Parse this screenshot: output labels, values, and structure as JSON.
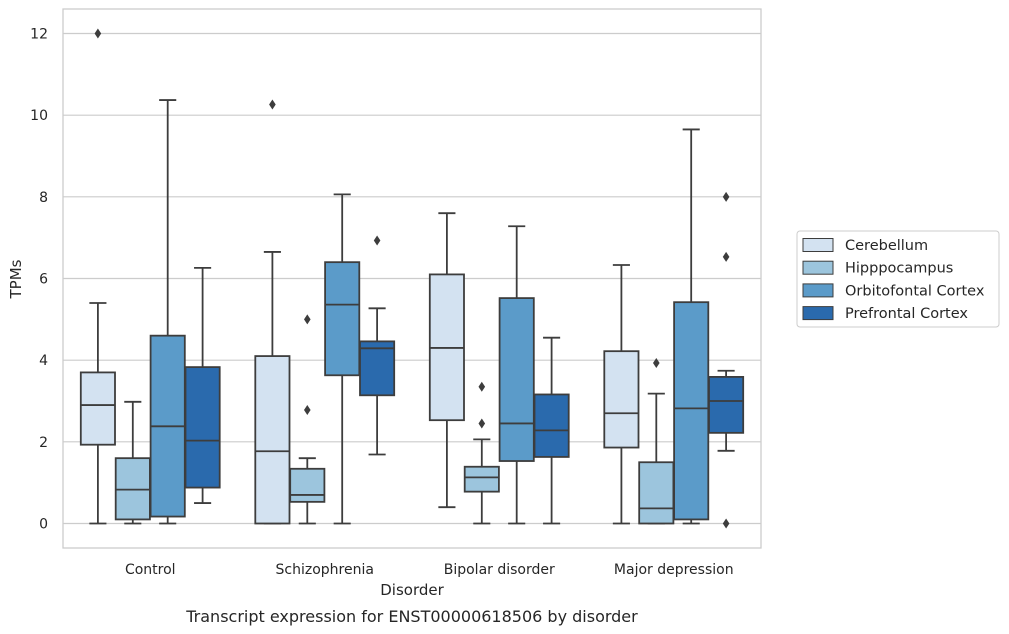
{
  "chart_data": {
    "type": "boxplot",
    "title": "",
    "caption": "Transcript expression for ENST00000618506 by disorder",
    "xlabel": "Disorder",
    "ylabel": "TPMs",
    "ylim": [
      -0.6,
      12.6
    ],
    "yticks": [
      0,
      2,
      4,
      6,
      8,
      10,
      12
    ],
    "grid": "horizontal",
    "legend_position": "right",
    "categories": [
      "Control",
      "Schizophrenia",
      "Bipolar disorder",
      "Major depression"
    ],
    "series": [
      {
        "name": "Cerebellum",
        "color": "#d3e2f1",
        "boxes": [
          {
            "whislo": 0.0,
            "q1": 1.93,
            "med": 2.9,
            "q3": 3.7,
            "whishi": 5.4,
            "fliers": [
              12.0
            ]
          },
          {
            "whislo": 0.0,
            "q1": 0.0,
            "med": 1.77,
            "q3": 4.1,
            "whishi": 6.65,
            "fliers": [
              10.26
            ]
          },
          {
            "whislo": 0.4,
            "q1": 2.53,
            "med": 4.3,
            "q3": 6.1,
            "whishi": 7.6,
            "fliers": []
          },
          {
            "whislo": 0.0,
            "q1": 1.86,
            "med": 2.7,
            "q3": 4.22,
            "whishi": 6.33,
            "fliers": []
          }
        ]
      },
      {
        "name": "Hipppocampus",
        "color": "#9cc5dd",
        "boxes": [
          {
            "whislo": 0.0,
            "q1": 0.1,
            "med": 0.83,
            "q3": 1.6,
            "whishi": 2.98,
            "fliers": []
          },
          {
            "whislo": 0.0,
            "q1": 0.53,
            "med": 0.7,
            "q3": 1.34,
            "whishi": 1.6,
            "fliers": [
              5.0,
              2.78
            ]
          },
          {
            "whislo": 0.0,
            "q1": 0.78,
            "med": 1.13,
            "q3": 1.39,
            "whishi": 2.06,
            "fliers": [
              3.35,
              2.45
            ]
          },
          {
            "whislo": 0.0,
            "q1": 0.0,
            "med": 0.37,
            "q3": 1.5,
            "whishi": 3.18,
            "fliers": [
              3.93
            ]
          }
        ]
      },
      {
        "name": "Orbitofontal Cortex",
        "color": "#5b9bc9",
        "boxes": [
          {
            "whislo": 0.0,
            "q1": 0.17,
            "med": 2.38,
            "q3": 4.6,
            "whishi": 10.37,
            "fliers": []
          },
          {
            "whislo": 0.0,
            "q1": 3.63,
            "med": 5.36,
            "q3": 6.4,
            "whishi": 8.06,
            "fliers": []
          },
          {
            "whislo": 0.0,
            "q1": 1.53,
            "med": 2.45,
            "q3": 5.52,
            "whishi": 7.28,
            "fliers": []
          },
          {
            "whislo": 0.0,
            "q1": 0.1,
            "med": 2.82,
            "q3": 5.42,
            "whishi": 9.65,
            "fliers": []
          }
        ]
      },
      {
        "name": "Prefrontal Cortex",
        "color": "#2a6aad",
        "boxes": [
          {
            "whislo": 0.5,
            "q1": 0.88,
            "med": 2.03,
            "q3": 3.83,
            "whishi": 6.26,
            "fliers": []
          },
          {
            "whislo": 1.69,
            "q1": 3.14,
            "med": 4.29,
            "q3": 4.46,
            "whishi": 5.27,
            "fliers": [
              6.93
            ]
          },
          {
            "whislo": 0.0,
            "q1": 1.63,
            "med": 2.28,
            "q3": 3.16,
            "whishi": 4.55,
            "fliers": []
          },
          {
            "whislo": 1.78,
            "q1": 2.22,
            "med": 3.0,
            "q3": 3.59,
            "whishi": 3.74,
            "fliers": [
              8.0,
              6.53,
              0.0
            ]
          }
        ]
      }
    ]
  }
}
